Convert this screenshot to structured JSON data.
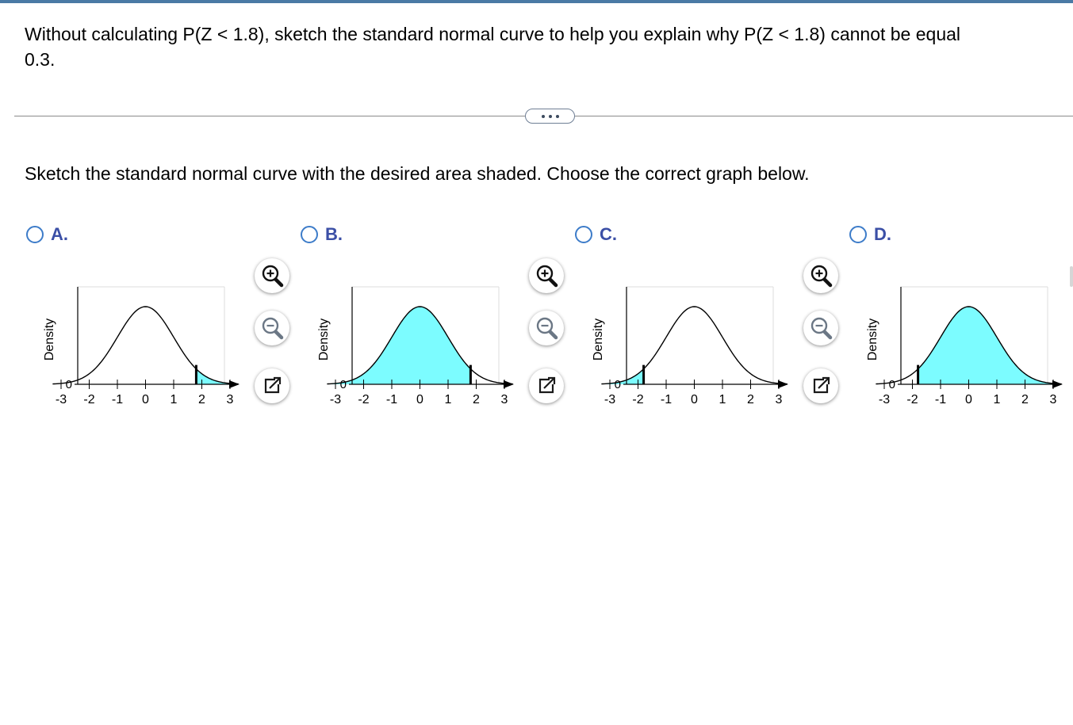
{
  "question": {
    "line1": "Without calculating P(Z < 1.8), sketch the standard normal curve to help you explain why P(Z < 1.8) cannot be equal",
    "line2": "0.3."
  },
  "instruction": "Sketch the standard normal curve with the desired area shaded. Choose the correct graph below.",
  "options": [
    {
      "letter": "A.",
      "shade": [
        1.8,
        3.3
      ]
    },
    {
      "letter": "B.",
      "shade": [
        -3.3,
        1.8
      ]
    },
    {
      "letter": "C.",
      "shade": [
        -3.3,
        -1.8
      ]
    },
    {
      "letter": "D.",
      "shade": [
        -1.8,
        3.3
      ]
    }
  ],
  "chart_data": {
    "type": "area",
    "ylabel": "Density",
    "y_zero_label": "0",
    "x_ticks": [
      "-3",
      "-2",
      "-1",
      "0",
      "1",
      "2",
      "3"
    ],
    "x_values": [
      -3,
      -2,
      -1,
      0,
      1,
      2,
      3
    ],
    "xlim": [
      -3.3,
      3.3
    ],
    "fill_color": "#7cfcff"
  },
  "tools": [
    "zoom-in-icon",
    "zoom-out-icon",
    "expand-icon"
  ]
}
